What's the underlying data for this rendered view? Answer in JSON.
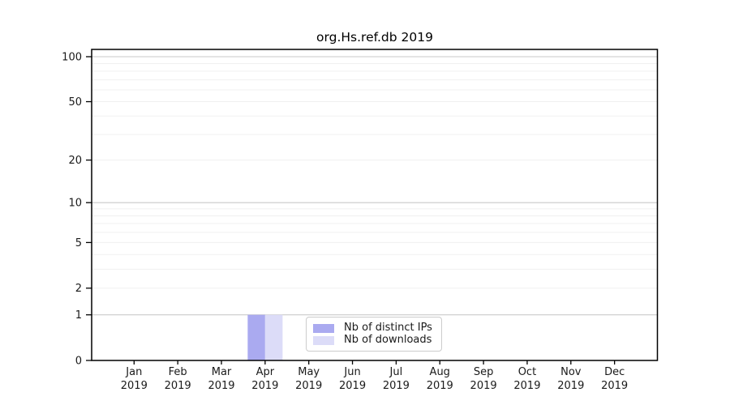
{
  "window": {
    "background": "#ffffff"
  },
  "chart_data": {
    "type": "bar",
    "title": "org.Hs.ref.db 2019",
    "categories": [
      "Jan",
      "Feb",
      "Mar",
      "Apr",
      "May",
      "Jun",
      "Jul",
      "Aug",
      "Sep",
      "Oct",
      "Nov",
      "Dec"
    ],
    "category_year_label": "2019",
    "series": [
      {
        "name": "Nb of distinct IPs",
        "color": "#aaaaf0",
        "values": [
          0,
          0,
          0,
          1,
          0,
          0,
          0,
          0,
          0,
          0,
          0,
          0
        ]
      },
      {
        "name": "Nb of downloads",
        "color": "#dcdcf8",
        "values": [
          0,
          0,
          0,
          1,
          0,
          0,
          0,
          0,
          0,
          0,
          0,
          0
        ]
      }
    ],
    "y_axis": {
      "scale": "log1p",
      "tick_labels": [
        0,
        1,
        2,
        5,
        10,
        20,
        50,
        100
      ],
      "major_gridlines": [
        1,
        10,
        100
      ],
      "minor_gridlines": [
        2,
        3,
        4,
        5,
        6,
        7,
        8,
        9,
        20,
        30,
        40,
        50,
        60,
        70,
        80,
        90
      ],
      "ylim": [
        0,
        109
      ]
    },
    "xlabel": "",
    "ylabel": "",
    "grid": true,
    "legend_position": "inside-bottom-center"
  },
  "colors": {
    "axis": "#000000",
    "text": "#1a1a1a",
    "major_grid": "#c9c9c9",
    "minor_grid": "#f0f0f0",
    "legend_border": "#cccccc",
    "background": "#ffffff"
  }
}
